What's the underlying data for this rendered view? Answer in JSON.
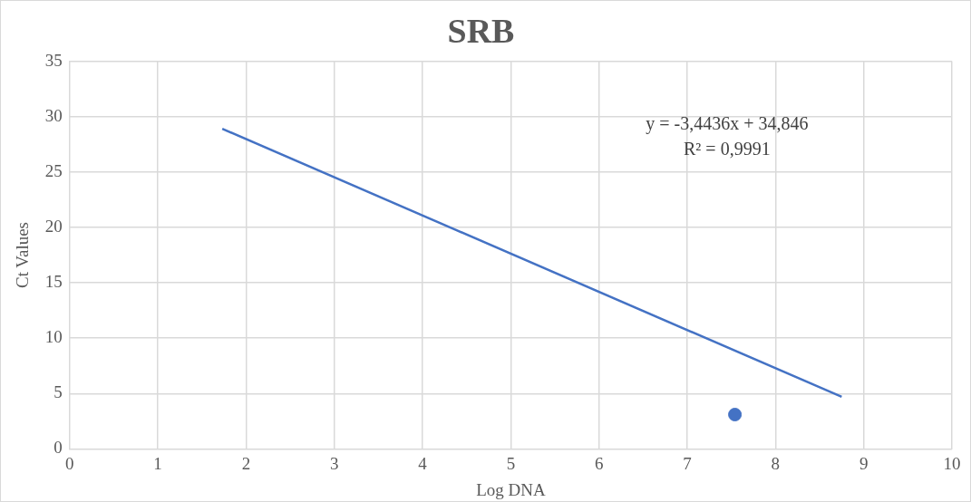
{
  "chart_data": {
    "type": "scatter",
    "title": "SRB",
    "xlabel": "Log DNA",
    "ylabel": "Ct Values",
    "xlim": [
      0,
      10
    ],
    "xticks": [
      0,
      1,
      2,
      3,
      4,
      5,
      6,
      7,
      8,
      9,
      10
    ],
    "ylim": [
      0,
      35
    ],
    "yticks": [
      0,
      5,
      10,
      15,
      20,
      25,
      30,
      35
    ],
    "grid": true,
    "marker": "circle",
    "series": [
      {
        "type": "scatter",
        "color": "#4472c4",
        "x": [
          7.54
        ],
        "values": [
          3.1
        ]
      },
      {
        "type": "line",
        "color": "#4472c4",
        "x": [
          1.73,
          8.75
        ],
        "values": [
          28.9,
          4.7
        ],
        "marker": "none"
      }
    ],
    "annotations": [
      "y = -3,4436x + 34,846",
      "R² = 0,9991"
    ]
  }
}
